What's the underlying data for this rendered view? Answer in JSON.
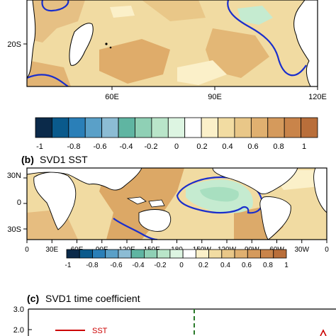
{
  "top_panel": {
    "lat_labels": [
      "20S"
    ],
    "lon_labels": [
      "60E",
      "90E",
      "120E"
    ],
    "colorbar_labels": [
      "-1",
      "-0.8",
      "-0.6",
      "-0.4",
      "-0.2",
      "0",
      "0.2",
      "0.4",
      "0.6",
      "0.8",
      "1"
    ]
  },
  "panel_b": {
    "letter": "(b)",
    "title": "SVD1 SST",
    "lat_labels": [
      "30N",
      "0",
      "30S"
    ],
    "lon_labels": [
      "0",
      "30E",
      "60E",
      "90E",
      "120E",
      "150E",
      "180",
      "150W",
      "120W",
      "90W",
      "60W",
      "30W",
      "0"
    ],
    "colorbar_labels": [
      "-1",
      "-0.8",
      "-0.6",
      "-0.4",
      "-0.2",
      "0",
      "0.2",
      "0.4",
      "0.6",
      "0.8",
      "1"
    ]
  },
  "panel_c": {
    "letter": "(c)",
    "title": "SVD1 time coefficient",
    "y_ticks": [
      "3.0",
      "2.0"
    ],
    "legend": [
      {
        "name": "SST",
        "color": "#cc0000"
      }
    ]
  },
  "colors": {
    "colorbar": [
      "#0b2a4a",
      "#0a5a8c",
      "#2a7fb8",
      "#5aa0c8",
      "#8cbcd4",
      "#5fb5a2",
      "#8fd0b5",
      "#b9e5c9",
      "#ddf5e2",
      "#ffffff",
      "#fbf0c9",
      "#f2dca2",
      "#e9c788",
      "#e0b070",
      "#d59a5c",
      "#c9844a",
      "#b96e3a"
    ],
    "contour": "#1a2ecc",
    "dashed_line": "#2a7a2a"
  },
  "chart_data": [
    {
      "type": "heatmap",
      "title": "",
      "xlabel": "",
      "ylabel": "",
      "x_ticks": [
        "60E",
        "90E",
        "120E"
      ],
      "y_ticks": [
        "20S"
      ],
      "colorbar_range": [
        -1,
        1
      ],
      "colorbar_ticks": [
        -1,
        -0.8,
        -0.6,
        -0.4,
        -0.2,
        0,
        0.2,
        0.4,
        0.6,
        0.8,
        1
      ]
    },
    {
      "type": "heatmap",
      "title": "SVD1 SST",
      "x_ticks": [
        "0",
        "30E",
        "60E",
        "90E",
        "120E",
        "150E",
        "180",
        "150W",
        "120W",
        "90W",
        "60W",
        "30W",
        "0"
      ],
      "y_ticks": [
        "30N",
        "0",
        "30S"
      ],
      "colorbar_range": [
        -1,
        1
      ],
      "colorbar_ticks": [
        -1,
        -0.8,
        -0.6,
        -0.4,
        -0.2,
        0,
        0.2,
        0.4,
        0.6,
        0.8,
        1
      ]
    },
    {
      "type": "line",
      "title": "SVD1 time coefficient",
      "y_ticks": [
        3.0,
        2.0
      ],
      "series": [
        {
          "name": "SST",
          "values": []
        }
      ]
    }
  ]
}
